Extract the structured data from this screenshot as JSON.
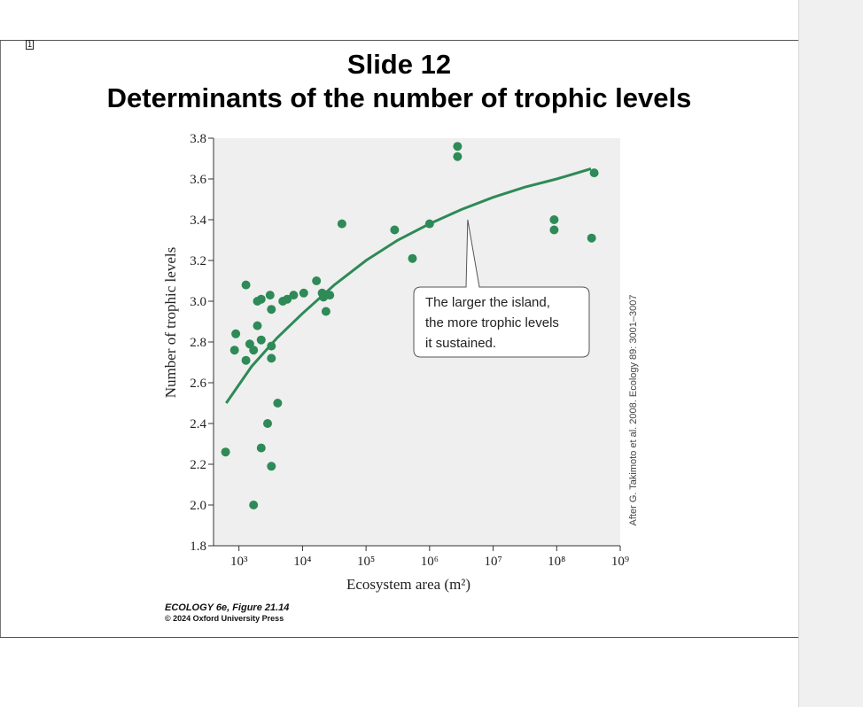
{
  "page": {
    "marker": "1"
  },
  "slide": {
    "title_line1": "Slide 12",
    "title_line2": "Determinants of the number of trophic levels"
  },
  "caption": {
    "figure": "ECOLOGY 6e, Figure 21.14",
    "copyright": "© 2024 Oxford University Press"
  },
  "colors": {
    "point": "#2e8a57",
    "curve": "#2e8a57",
    "plot_bg": "#efefef"
  },
  "chart_data": {
    "type": "scatter",
    "title": "",
    "xlabel": "Ecosystem area (m²)",
    "ylabel": "Number of trophic levels",
    "x_scale": "log10",
    "xlim": [
      2.6,
      9.0
    ],
    "ylim": [
      1.8,
      3.8
    ],
    "x_ticks": [
      3,
      4,
      5,
      6,
      7,
      8,
      9
    ],
    "x_tick_labels": [
      "10³",
      "10⁴",
      "10⁵",
      "10⁶",
      "10⁷",
      "10⁸",
      "10⁹"
    ],
    "y_ticks": [
      1.8,
      2.0,
      2.2,
      2.4,
      2.6,
      2.8,
      3.0,
      3.2,
      3.4,
      3.6,
      3.8
    ],
    "y_tick_labels": [
      "1.8",
      "2.0",
      "2.2",
      "2.4",
      "2.6",
      "2.8",
      "3.0",
      "3.2",
      "3.4",
      "3.6",
      "3.8"
    ],
    "grid": false,
    "series": [
      {
        "type": "scatter",
        "points": [
          [
            2.79,
            2.26
          ],
          [
            2.93,
            2.76
          ],
          [
            2.95,
            2.84
          ],
          [
            3.11,
            3.08
          ],
          [
            3.11,
            2.71
          ],
          [
            3.17,
            2.79
          ],
          [
            3.23,
            2.76
          ],
          [
            3.23,
            2.0
          ],
          [
            3.29,
            3.0
          ],
          [
            3.29,
            2.88
          ],
          [
            3.35,
            2.81
          ],
          [
            3.35,
            3.01
          ],
          [
            3.35,
            2.28
          ],
          [
            3.45,
            2.4
          ],
          [
            3.49,
            3.03
          ],
          [
            3.51,
            2.96
          ],
          [
            3.51,
            2.78
          ],
          [
            3.51,
            2.72
          ],
          [
            3.51,
            2.19
          ],
          [
            3.61,
            2.5
          ],
          [
            3.69,
            3.0
          ],
          [
            3.76,
            3.01
          ],
          [
            3.86,
            3.03
          ],
          [
            4.02,
            3.04
          ],
          [
            4.22,
            3.1
          ],
          [
            4.31,
            3.04
          ],
          [
            4.33,
            3.02
          ],
          [
            4.37,
            2.95
          ],
          [
            4.43,
            3.03
          ],
          [
            4.62,
            3.38
          ],
          [
            5.45,
            3.35
          ],
          [
            5.73,
            3.21
          ],
          [
            6.0,
            3.38
          ],
          [
            6.44,
            3.76
          ],
          [
            6.44,
            3.71
          ],
          [
            7.96,
            3.4
          ],
          [
            7.96,
            3.35
          ],
          [
            8.55,
            3.31
          ],
          [
            8.59,
            3.63
          ]
        ]
      },
      {
        "type": "line",
        "points": [
          [
            2.8,
            2.5
          ],
          [
            3.2,
            2.68
          ],
          [
            3.6,
            2.82
          ],
          [
            4.0,
            2.94
          ],
          [
            4.5,
            3.08
          ],
          [
            5.0,
            3.2
          ],
          [
            5.5,
            3.3
          ],
          [
            6.0,
            3.38
          ],
          [
            6.5,
            3.45
          ],
          [
            7.0,
            3.51
          ],
          [
            7.5,
            3.56
          ],
          [
            8.0,
            3.6
          ],
          [
            8.54,
            3.65
          ]
        ]
      }
    ],
    "annotations": [
      {
        "lines": [
          "The larger the island,",
          "the more trophic levels",
          "it sustained."
        ],
        "points_to": [
          6.6,
          3.4
        ]
      }
    ],
    "source_note": "After G. Takimoto et al. 2008. Ecology 89: 3001–3007"
  }
}
